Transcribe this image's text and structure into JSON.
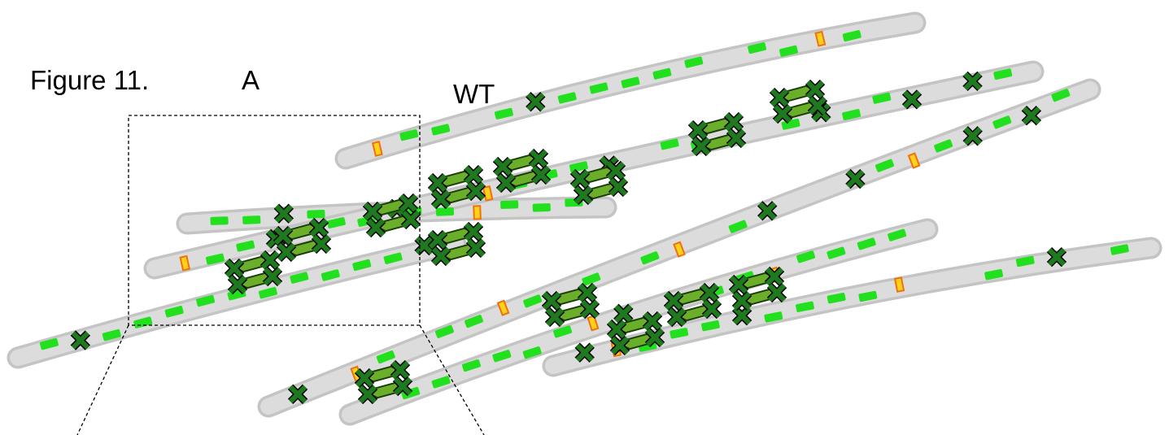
{
  "header": {
    "figure": "Figure 11.",
    "panel": "A",
    "condition": "WT"
  }
}
